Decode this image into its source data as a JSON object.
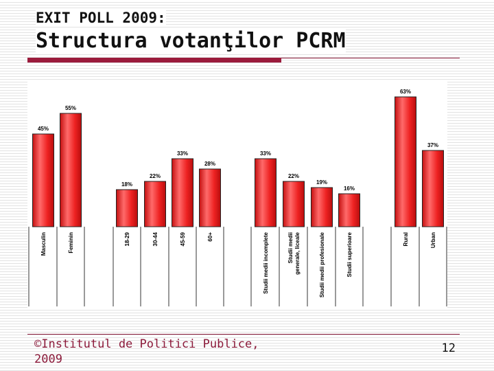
{
  "slide": {
    "title_line1": "EXIT POLL 2009:",
    "title_line2": "Structura votanţilor PCRM",
    "footer": "©Institutul de Politici Publice, 2009",
    "page_number": "12"
  },
  "colors": {
    "bar": "#ee2222",
    "bar_highlight": "#ff6a6a",
    "accent": "#9b1b3c"
  },
  "chart_data": {
    "type": "bar",
    "title": "",
    "xlabel": "",
    "ylabel": "",
    "ylim": [
      0,
      65
    ],
    "grid": false,
    "categories": [
      "Masculin",
      "Feminin",
      "18-29",
      "30-44",
      "45-59",
      "60+",
      "Studii medii incomplete",
      "Studii medii generale, liceale",
      "Studii medii profesionale",
      "Studii superioare",
      "Rural",
      "Urban"
    ],
    "values": [
      45,
      55,
      18,
      22,
      33,
      28,
      33,
      22,
      19,
      16,
      63,
      37
    ],
    "value_labels": [
      "45%",
      "55%",
      "18%",
      "22%",
      "33%",
      "28%",
      "33%",
      "22%",
      "19%",
      "16%",
      "63%",
      "37%"
    ],
    "groups": [
      {
        "indices": [
          0,
          1
        ]
      },
      {
        "indices": [
          2,
          3,
          4,
          5
        ]
      },
      {
        "indices": [
          6,
          7,
          8,
          9
        ]
      },
      {
        "indices": [
          10,
          11
        ]
      }
    ]
  }
}
